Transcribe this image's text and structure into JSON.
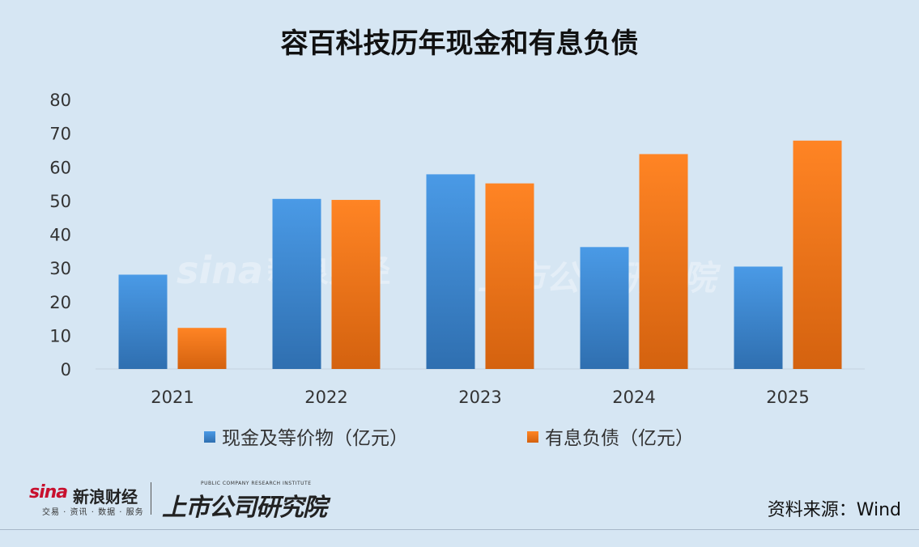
{
  "chart_data": {
    "type": "bar",
    "title": "容百科技历年现金和有息负债",
    "categories": [
      "2021",
      "2022",
      "2023",
      "2024",
      "2025"
    ],
    "series": [
      {
        "name": "现金及等价物（亿元）",
        "values": [
          28,
          50.5,
          57.8,
          36.2,
          30.4
        ],
        "color": "#3a86d0"
      },
      {
        "name": "有息负债（亿元）",
        "values": [
          12.2,
          50.2,
          55.1,
          63.8,
          67.8
        ],
        "color": "#f07a1a"
      }
    ],
    "ylim": [
      0,
      80
    ],
    "yticks": [
      0,
      10,
      20,
      30,
      40,
      50,
      60,
      70,
      80
    ],
    "grid": false,
    "legend": "bottom"
  },
  "source": "资料来源：Wind",
  "brand": {
    "sina_word": "sina",
    "sina_cn": "新浪财经",
    "sina_sub": "交易 · 资讯 · 数据 · 服务",
    "inst_en": "PUBLIC COMPANY RESEARCH INSTITUTE",
    "inst_cn": "上市公司研究院"
  }
}
